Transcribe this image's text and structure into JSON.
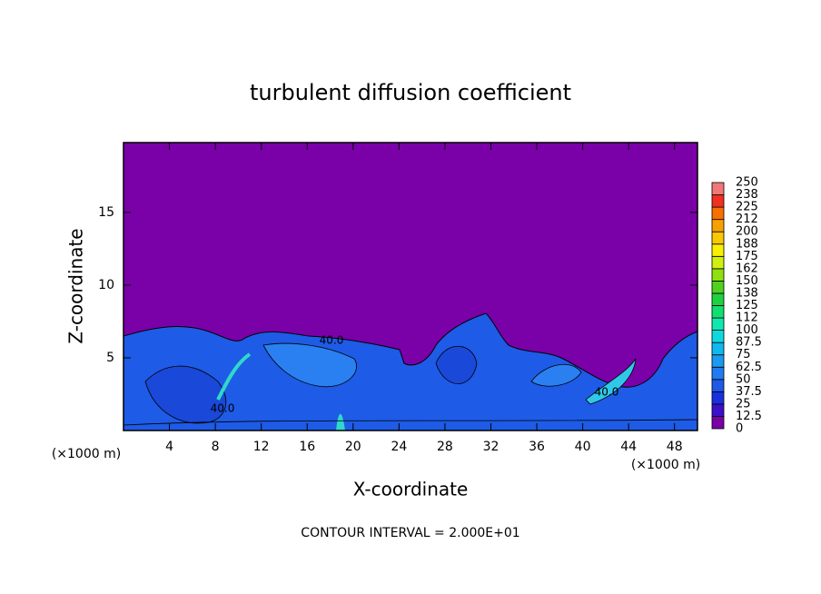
{
  "chart_data": {
    "type": "contour",
    "title": "turbulent diffusion coefficient",
    "x_label": "X-coordinate",
    "y_label": "Z-coordinate",
    "x_unit_left": "(×1000 m)",
    "x_unit_right": "(×1000 m)",
    "footnote": "CONTOUR INTERVAL = 2.000E+01",
    "contour_labels": [
      "40.0",
      "40.0",
      "40.0"
    ],
    "xlim": [
      0,
      50
    ],
    "xticks": [
      4,
      8,
      12,
      16,
      20,
      24,
      28,
      32,
      36,
      40,
      44,
      48
    ],
    "ylim": [
      0,
      19.8
    ],
    "yticks": [
      5,
      10,
      15
    ],
    "background_color": "#7a00a8",
    "colorbar": {
      "levels": [
        0,
        12.5,
        25,
        37.5,
        50,
        62.5,
        75,
        87.5,
        100,
        112,
        125,
        138,
        150,
        162,
        175,
        188,
        200,
        212,
        225,
        238,
        250
      ],
      "colors": [
        "#7a00a8",
        "#3a10c8",
        "#1a30e0",
        "#1e5ae8",
        "#1f7cf0",
        "#1a9af0",
        "#10b8f0",
        "#10d8e0",
        "#10e8b0",
        "#10e070",
        "#20d040",
        "#50d020",
        "#90e010",
        "#d0f010",
        "#f8f000",
        "#f8c800",
        "#f8a000",
        "#f87000",
        "#f03020",
        "#f07878"
      ]
    }
  }
}
